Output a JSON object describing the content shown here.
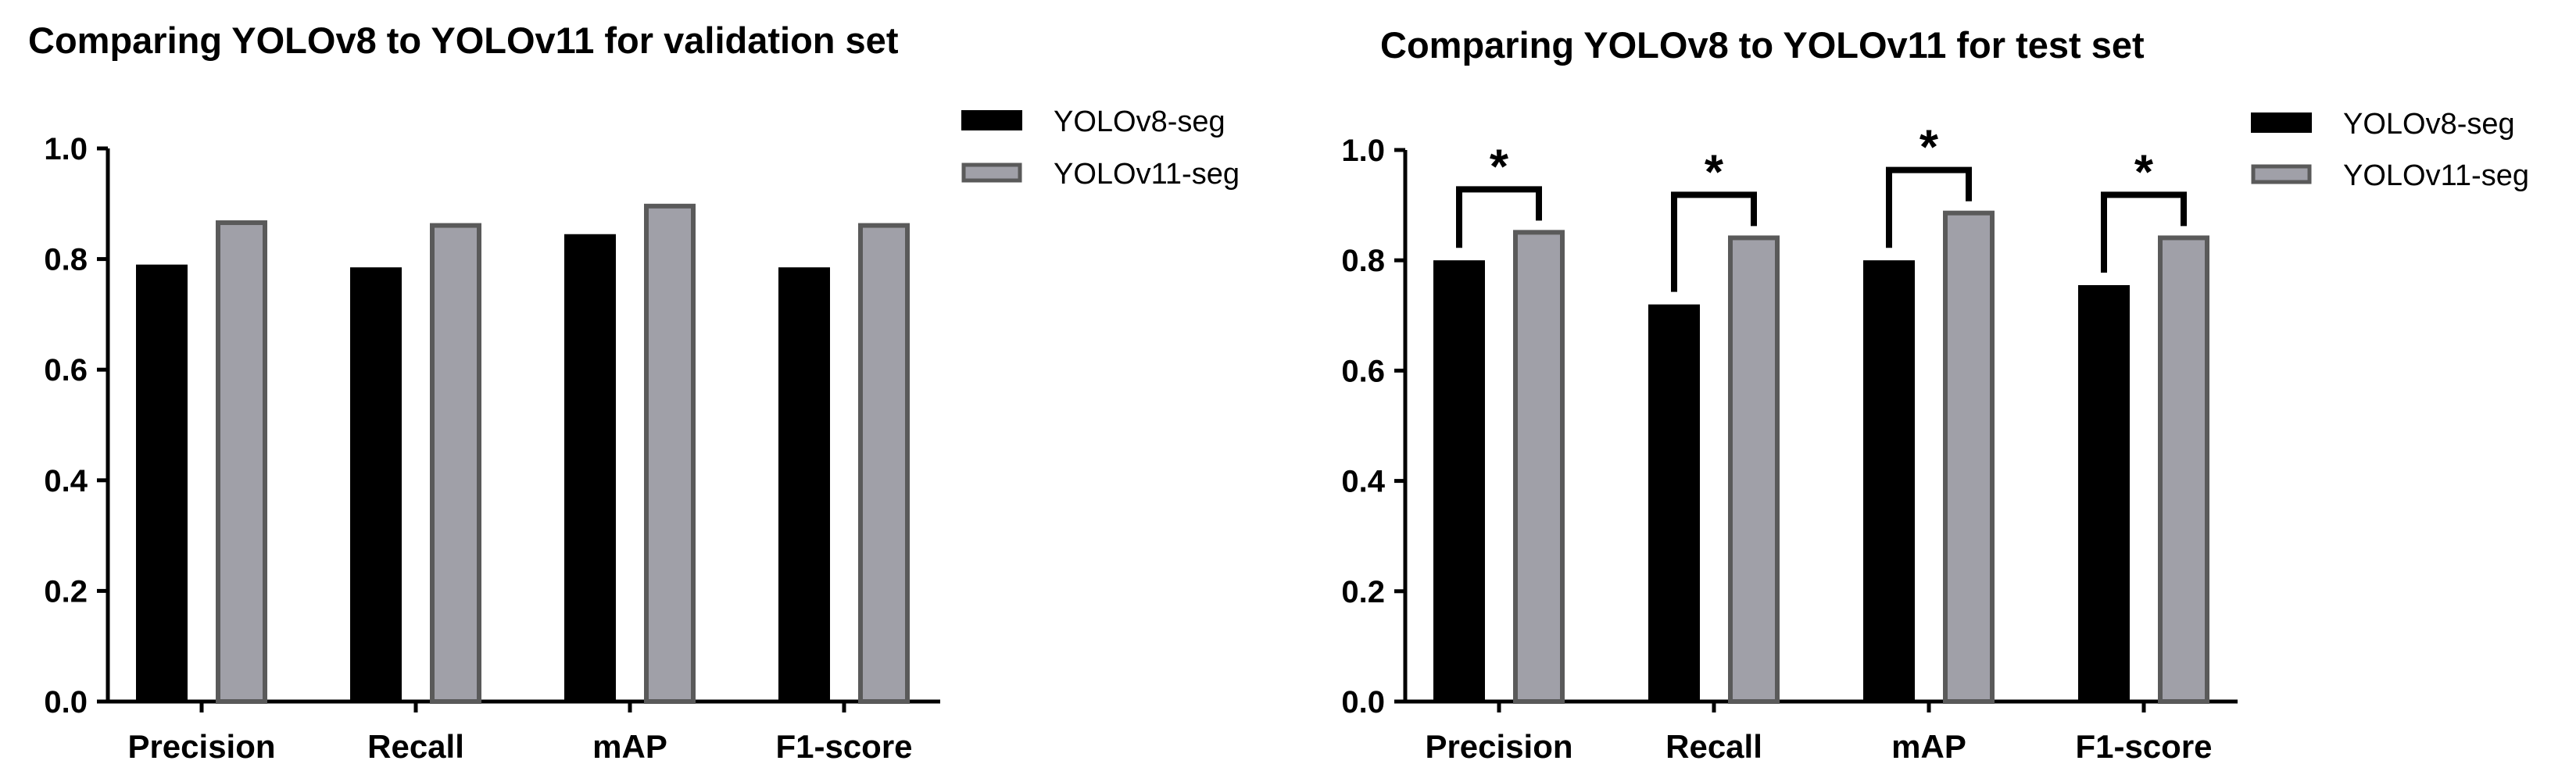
{
  "chart_data": [
    {
      "type": "bar",
      "title": "Comparing YOLOv8 to YOLOv11 for validation set",
      "categories": [
        "Precision",
        "Recall",
        "mAP",
        "F1-score"
      ],
      "series": [
        {
          "name": "YOLOv8-seg",
          "color": "#000000",
          "values": [
            0.79,
            0.785,
            0.845,
            0.785
          ]
        },
        {
          "name": "YOLOv11-seg",
          "color": "#a0a0a8",
          "values": [
            0.87,
            0.865,
            0.9,
            0.865
          ]
        }
      ],
      "ylim": [
        0,
        1.0
      ],
      "yticks": [
        "0.0",
        "0.2",
        "0.4",
        "0.6",
        "0.8",
        "1.0"
      ],
      "xlabel": "",
      "ylabel": "",
      "significance": []
    },
    {
      "type": "bar",
      "title": "Comparing YOLOv8 to YOLOv11 for test set",
      "categories": [
        "Precision",
        "Recall",
        "mAP",
        "F1-score"
      ],
      "series": [
        {
          "name": "YOLOv8-seg",
          "color": "#000000",
          "values": [
            0.8,
            0.72,
            0.8,
            0.755
          ]
        },
        {
          "name": "YOLOv11-seg",
          "color": "#a0a0a8",
          "values": [
            0.855,
            0.845,
            0.89,
            0.845
          ]
        }
      ],
      "ylim": [
        0,
        1.0
      ],
      "yticks": [
        "0.0",
        "0.2",
        "0.4",
        "0.6",
        "0.8",
        "1.0"
      ],
      "xlabel": "",
      "ylabel": "",
      "significance": [
        "*",
        "*",
        "*",
        "*"
      ]
    }
  ]
}
